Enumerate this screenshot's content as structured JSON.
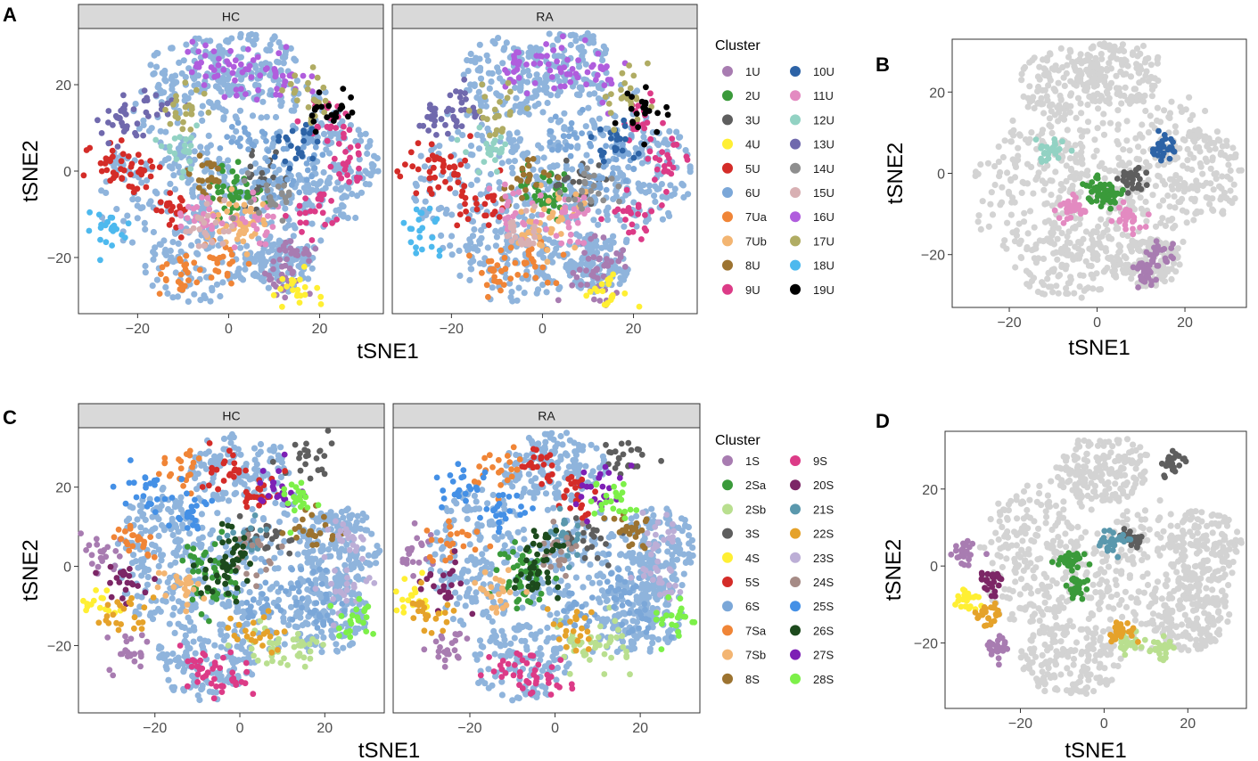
{
  "panel_labels": {
    "a": "A",
    "b": "B",
    "c": "C",
    "d": "D"
  },
  "chart_data": [
    {
      "id": "A",
      "type": "scatter",
      "title": "",
      "facets": [
        "HC",
        "RA"
      ],
      "xlabel": "tSNE1",
      "ylabel": "tSNE2",
      "xlim": [
        -33,
        34
      ],
      "ylim": [
        -33,
        33
      ],
      "xticks": [
        -20,
        0,
        20
      ],
      "xtick_labels": [
        "−20",
        "0",
        "20"
      ],
      "yticks": [
        -20,
        0,
        20
      ],
      "ytick_labels": [
        "−20",
        "0",
        "20"
      ],
      "legend_title": "Cluster",
      "legend_position": "right",
      "series": [
        {
          "name": "1U",
          "color": "#a87cb1",
          "centroids": [
            [
              14,
              -20
            ],
            [
              11,
              -25
            ]
          ]
        },
        {
          "name": "2U",
          "color": "#3a9a3a",
          "centroids": [
            [
              0,
              -4
            ],
            [
              3,
              -5
            ]
          ]
        },
        {
          "name": "3U",
          "color": "#5e5e5e",
          "centroids": [
            [
              8,
              -2
            ]
          ]
        },
        {
          "name": "4U",
          "color": "#ffef33",
          "centroids": [
            [
              14,
              -29
            ]
          ]
        },
        {
          "name": "5U",
          "color": "#d42c28",
          "centroids": [
            [
              -20,
              -1
            ],
            [
              -13,
              -8
            ],
            [
              -26,
              2
            ]
          ]
        },
        {
          "name": "6U",
          "color": "#7ba7d8",
          "centroids": [
            [
              5,
              8
            ],
            [
              12,
              -2
            ],
            [
              17,
              5
            ]
          ]
        },
        {
          "name": "7Ua",
          "color": "#f08537",
          "centroids": [
            [
              -10,
              -24
            ],
            [
              -2,
              -21
            ]
          ]
        },
        {
          "name": "7Ub",
          "color": "#f3b572",
          "centroids": [
            [
              0,
              -14
            ],
            [
              4,
              -10
            ]
          ]
        },
        {
          "name": "8U",
          "color": "#9c7330",
          "centroids": [
            [
              -5,
              -2
            ]
          ]
        },
        {
          "name": "9U",
          "color": "#dc3b87",
          "centroids": [
            [
              27,
              2
            ],
            [
              22,
              12
            ],
            [
              20,
              -10
            ]
          ]
        },
        {
          "name": "10U",
          "color": "#2d63a6",
          "centroids": [
            [
              15,
              6
            ]
          ]
        },
        {
          "name": "11U",
          "color": "#e38ac1",
          "centroids": [
            [
              -6,
              -9
            ],
            [
              7,
              -11
            ]
          ]
        },
        {
          "name": "12U",
          "color": "#92d2c3",
          "centroids": [
            [
              -11,
              5
            ]
          ]
        },
        {
          "name": "13U",
          "color": "#7069ad",
          "centroids": [
            [
              -24,
              12
            ],
            [
              -18,
              14
            ]
          ]
        },
        {
          "name": "14U",
          "color": "#8e8e8e",
          "centroids": [
            [
              10,
              -5
            ]
          ]
        },
        {
          "name": "15U",
          "color": "#d8b0b3",
          "centroids": [
            [
              -4,
              -14
            ]
          ]
        },
        {
          "name": "16U",
          "color": "#b05ddd",
          "centroids": [
            [
              4,
              24
            ],
            [
              -5,
              24
            ],
            [
              12,
              22
            ]
          ]
        },
        {
          "name": "17U",
          "color": "#b0ac63",
          "centroids": [
            [
              -10,
              14
            ],
            [
              18,
              17
            ]
          ]
        },
        {
          "name": "18U",
          "color": "#4db9ee",
          "centroids": [
            [
              -27,
              -14
            ]
          ]
        },
        {
          "name": "19U",
          "color": "#000000",
          "centroids": [
            [
              23,
              14
            ]
          ]
        }
      ]
    },
    {
      "id": "B",
      "type": "scatter",
      "title": "",
      "xlabel": "tSNE1",
      "ylabel": "tSNE2",
      "xlim": [
        -33,
        34
      ],
      "ylim": [
        -33,
        33
      ],
      "xticks": [
        -20,
        0,
        20
      ],
      "xtick_labels": [
        "−20",
        "0",
        "20"
      ],
      "yticks": [
        -20,
        0,
        20
      ],
      "ytick_labels": [
        "−20",
        "0",
        "20"
      ],
      "background_color": "#d3d3d3",
      "highlighted": [
        "1U",
        "2U",
        "3U",
        "10U",
        "11U",
        "12U"
      ]
    },
    {
      "id": "C",
      "type": "scatter",
      "title": "",
      "facets": [
        "HC",
        "RA"
      ],
      "xlabel": "tSNE1",
      "ylabel": "tSNE2",
      "xlim": [
        -38,
        34
      ],
      "ylim": [
        -37,
        35
      ],
      "xticks": [
        -20,
        0,
        20
      ],
      "xtick_labels": [
        "−20",
        "0",
        "20"
      ],
      "yticks": [
        -20,
        0,
        20
      ],
      "ytick_labels": [
        "−20",
        "0",
        "20"
      ],
      "legend_title": "Cluster",
      "legend_position": "right",
      "series": [
        {
          "name": "1S",
          "color": "#a87cb1",
          "centroids": [
            [
              -25,
              -21
            ],
            [
              -33,
              3
            ]
          ]
        },
        {
          "name": "2Sa",
          "color": "#3a9a3a",
          "centroids": [
            [
              -8,
              1
            ],
            [
              -7,
              -6
            ]
          ]
        },
        {
          "name": "2Sb",
          "color": "#b9df8f",
          "centroids": [
            [
              6,
              -20
            ],
            [
              14,
              -21
            ]
          ]
        },
        {
          "name": "3S",
          "color": "#5e5e5e",
          "centroids": [
            [
              16,
              27
            ],
            [
              7,
              7
            ]
          ]
        },
        {
          "name": "4S",
          "color": "#ffef33",
          "centroids": [
            [
              -33,
              -9
            ]
          ]
        },
        {
          "name": "5S",
          "color": "#d42c28",
          "centroids": [
            [
              -3,
              25
            ],
            [
              5,
              18
            ]
          ]
        },
        {
          "name": "6S",
          "color": "#7ba7d8",
          "centroids": [
            [
              15,
              -5
            ],
            [
              5,
              -10
            ],
            [
              20,
              -12
            ]
          ]
        },
        {
          "name": "7Sa",
          "color": "#f08537",
          "centroids": [
            [
              -24,
              6
            ],
            [
              -13,
              25
            ]
          ]
        },
        {
          "name": "7Sb",
          "color": "#f3b572",
          "centroids": [
            [
              -14,
              -6
            ]
          ]
        },
        {
          "name": "8S",
          "color": "#9c7330",
          "centroids": [
            [
              18,
              9
            ]
          ]
        },
        {
          "name": "9S",
          "color": "#dc3b87",
          "centroids": [
            [
              -10,
              -25
            ],
            [
              -2,
              -28
            ]
          ]
        },
        {
          "name": "20S",
          "color": "#7c2666",
          "centroids": [
            [
              -27,
              -4
            ]
          ]
        },
        {
          "name": "21S",
          "color": "#5a98ad",
          "centroids": [
            [
              2,
              7
            ]
          ]
        },
        {
          "name": "22S",
          "color": "#e5a22a",
          "centroids": [
            [
              4,
              -17
            ],
            [
              -28,
              -13
            ]
          ]
        },
        {
          "name": "23S",
          "color": "#bcaed6",
          "centroids": [
            [
              25,
              7
            ],
            [
              24,
              -5
            ]
          ]
        },
        {
          "name": "24S",
          "color": "#a68b86",
          "centroids": [
            [
              2,
              3
            ]
          ]
        },
        {
          "name": "25S",
          "color": "#4490e6",
          "centroids": [
            [
              -22,
              20
            ],
            [
              -12,
              14
            ]
          ]
        },
        {
          "name": "26S",
          "color": "#1d4a1d",
          "centroids": [
            [
              -5,
              -3
            ],
            [
              -2,
              5
            ]
          ]
        },
        {
          "name": "27S",
          "color": "#7d1fb5",
          "centroids": [
            [
              10,
              20
            ]
          ]
        },
        {
          "name": "28S",
          "color": "#7df049",
          "centroids": [
            [
              27,
              -14
            ],
            [
              14,
              17
            ]
          ]
        }
      ]
    },
    {
      "id": "D",
      "type": "scatter",
      "title": "",
      "xlabel": "tSNE1",
      "ylabel": "tSNE2",
      "xlim": [
        -38,
        34
      ],
      "ylim": [
        -37,
        35
      ],
      "xticks": [
        -20,
        0,
        20
      ],
      "xtick_labels": [
        "−20",
        "0",
        "20"
      ],
      "yticks": [
        -20,
        0,
        20
      ],
      "ytick_labels": [
        "−20",
        "0",
        "20"
      ],
      "background_color": "#d3d3d3",
      "highlighted": [
        "1S",
        "2Sa",
        "2Sb",
        "3S",
        "4S",
        "20S",
        "21S",
        "22S"
      ]
    }
  ]
}
